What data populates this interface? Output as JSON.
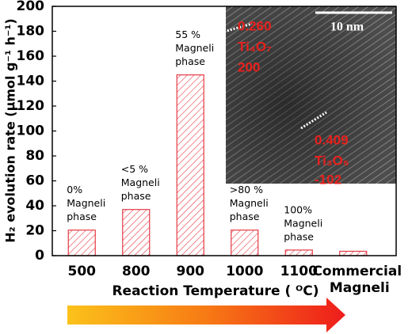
{
  "chart_data": {
    "type": "bar",
    "categories": [
      "500",
      "800",
      "900",
      "1000",
      "1100",
      "Commercial Magneli"
    ],
    "values": [
      20.5,
      37,
      145,
      20.5,
      4.5,
      3.5
    ],
    "color": "#e53a45",
    "ylim": [
      0,
      200
    ],
    "yticks": [
      0,
      20,
      40,
      60,
      80,
      100,
      120,
      140,
      160,
      180,
      200
    ],
    "grid": false,
    "y_label": "H₂ evolution rate (μmol g⁻¹ h⁻¹)",
    "x_label": "Reaction Temperature ( ᴼC)",
    "annotations": [
      [
        "0%",
        "Magneli",
        "phase"
      ],
      [
        "<5 %",
        "Magneli",
        "phase"
      ],
      [
        "55 %",
        "Magneli",
        "phase"
      ],
      [
        ">80 %",
        "Magneli",
        "phase"
      ],
      [
        "100%",
        "Magneli",
        "phase"
      ]
    ],
    "inset_labels": {
      "scale": "10 nm",
      "d1": "0.260",
      "phase1": "Ti₄O₇",
      "plane1": "200",
      "d2": "0.409",
      "phase2": "Ti₃O₅",
      "plane2": "-102"
    }
  }
}
